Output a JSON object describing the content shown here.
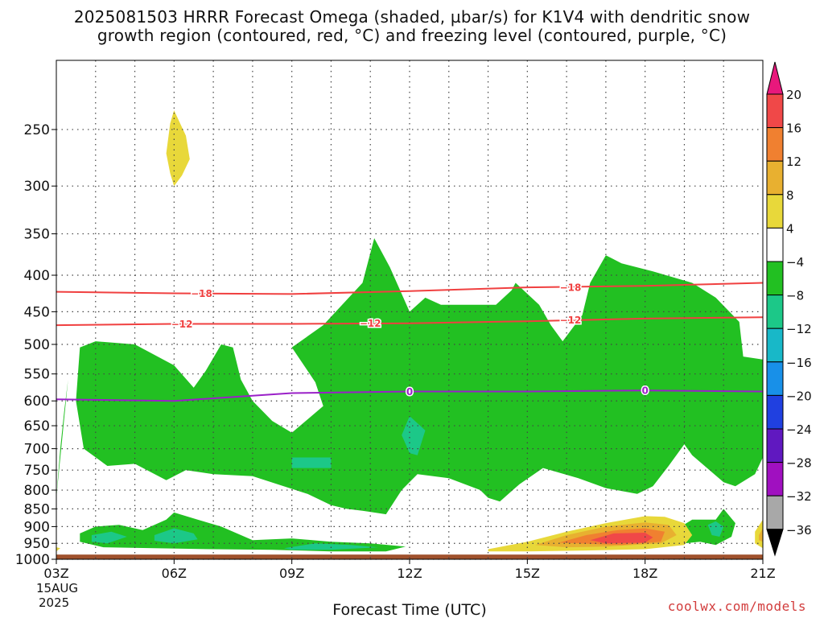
{
  "chart_data": {
    "type": "heatmap",
    "title_line1": "2025081503 HRRR Forecast Omega (shaded, µbar/s) for K1V4 with dendritic snow",
    "title_line2": "growth region (contoured, red, °C) and freezing level (contoured, purple, °C)",
    "xlabel": "Forecast Time (UTC)",
    "x_ticks": [
      "03Z",
      "06Z",
      "09Z",
      "12Z",
      "15Z",
      "18Z",
      "21Z"
    ],
    "x_hours": [
      3,
      21
    ],
    "date_label_line1": "15AUG",
    "date_label_line2": "2025",
    "y_ticks": [
      250,
      300,
      350,
      400,
      450,
      500,
      550,
      600,
      650,
      700,
      750,
      800,
      850,
      900,
      950,
      1000
    ],
    "y_range_hpa": [
      200,
      1000
    ],
    "y_scale": "log-pressure",
    "grid": true,
    "colorbar": {
      "labels": [
        "20",
        "16",
        "12",
        "8",
        "4",
        "−4",
        "−8",
        "−12",
        "−16",
        "−20",
        "−24",
        "−28",
        "−32",
        "−36"
      ],
      "colors": [
        "#e8187c",
        "#f04848",
        "#f08030",
        "#e8b030",
        "#e8d83a",
        "#ffffff",
        "#22c022",
        "#1cc888",
        "#18b8c8",
        "#1890e8",
        "#2040e0",
        "#6018c0",
        "#a010c0",
        "#a8a8a8",
        "#000000"
      ]
    },
    "contours": [
      {
        "label": "−18",
        "color": "#f04040",
        "points": [
          [
            3,
            422
          ],
          [
            6,
            424
          ],
          [
            9,
            425
          ],
          [
            12,
            421
          ],
          [
            15,
            416
          ],
          [
            18,
            414
          ],
          [
            21,
            410
          ]
        ],
        "label_at": [
          [
            6.7,
            424
          ],
          [
            16.1,
            416
          ]
        ]
      },
      {
        "label": "−12",
        "color": "#f04040",
        "points": [
          [
            3,
            470
          ],
          [
            6,
            468
          ],
          [
            9,
            468
          ],
          [
            12,
            467
          ],
          [
            15,
            464
          ],
          [
            18,
            460
          ],
          [
            21,
            458
          ]
        ],
        "label_at": [
          [
            6.2,
            468
          ],
          [
            11.0,
            467
          ],
          [
            16.1,
            462
          ]
        ]
      },
      {
        "label": "0",
        "color": "#9a20c8",
        "points": [
          [
            3,
            597
          ],
          [
            6,
            600
          ],
          [
            9,
            585
          ],
          [
            12,
            582
          ],
          [
            15,
            582
          ],
          [
            18,
            580
          ],
          [
            21,
            582
          ]
        ],
        "label_at": [
          [
            12.0,
            582
          ],
          [
            18.0,
            580
          ]
        ]
      }
    ],
    "surface_color": "#a0522d",
    "surface_top_hpa": 985,
    "omega_regions": [
      {
        "value_range": "-4 to -8",
        "color": "#22c022",
        "points": [
          [
            3.6,
            505
          ],
          [
            4.0,
            495
          ],
          [
            5.0,
            500
          ],
          [
            6.0,
            535
          ],
          [
            6.5,
            575
          ],
          [
            6.8,
            545
          ],
          [
            7.2,
            500
          ],
          [
            7.5,
            505
          ],
          [
            7.7,
            560
          ],
          [
            8.0,
            600
          ],
          [
            8.5,
            640
          ],
          [
            9.0,
            665
          ],
          [
            9.8,
            610
          ],
          [
            9.6,
            565
          ],
          [
            9.0,
            505
          ],
          [
            9.8,
            470
          ],
          [
            10.8,
            410
          ],
          [
            11.1,
            355
          ],
          [
            11.5,
            390
          ],
          [
            12.0,
            450
          ],
          [
            12.4,
            430
          ],
          [
            12.8,
            440
          ],
          [
            13.8,
            440
          ],
          [
            14.2,
            440
          ],
          [
            14.6,
            420
          ],
          [
            14.7,
            410
          ],
          [
            15.3,
            440
          ],
          [
            15.6,
            470
          ],
          [
            15.9,
            495
          ],
          [
            16.4,
            455
          ],
          [
            16.6,
            410
          ],
          [
            17.0,
            375
          ],
          [
            17.4,
            385
          ],
          [
            18.2,
            395
          ],
          [
            19.2,
            410
          ],
          [
            19.8,
            430
          ],
          [
            20.4,
            465
          ],
          [
            20.5,
            520
          ],
          [
            21.0,
            525
          ],
          [
            21.0,
            720
          ],
          [
            20.8,
            760
          ],
          [
            20.3,
            790
          ],
          [
            20.0,
            780
          ],
          [
            19.2,
            715
          ],
          [
            19.0,
            690
          ],
          [
            18.6,
            740
          ],
          [
            18.2,
            790
          ],
          [
            17.8,
            810
          ],
          [
            17.0,
            795
          ],
          [
            16.3,
            770
          ],
          [
            15.4,
            745
          ],
          [
            14.8,
            785
          ],
          [
            14.3,
            830
          ],
          [
            14.0,
            820
          ],
          [
            13.8,
            800
          ],
          [
            13.0,
            770
          ],
          [
            12.2,
            760
          ],
          [
            11.8,
            800
          ],
          [
            11.4,
            865
          ],
          [
            10.8,
            855
          ],
          [
            10.4,
            850
          ],
          [
            10.0,
            840
          ],
          [
            9.4,
            810
          ],
          [
            8.0,
            765
          ],
          [
            7.0,
            760
          ],
          [
            6.3,
            750
          ],
          [
            5.8,
            775
          ],
          [
            5.0,
            735
          ],
          [
            4.3,
            740
          ],
          [
            3.7,
            700
          ],
          [
            3.5,
            600
          ]
        ]
      },
      {
        "value_range": "-8 to -12",
        "color": "#1cc888",
        "points": [
          [
            9.0,
            720
          ],
          [
            10.0,
            720
          ],
          [
            10.0,
            745
          ],
          [
            9.0,
            745
          ]
        ]
      },
      {
        "value_range": "-8 to -12",
        "color": "#1cc888",
        "points": [
          [
            11.8,
            670
          ],
          [
            12.0,
            630
          ],
          [
            12.4,
            660
          ],
          [
            12.2,
            715
          ],
          [
            12.0,
            710
          ]
        ]
      },
      {
        "value_range": "-4 to -8",
        "color": "#22c022",
        "points": [
          [
            3.6,
            920
          ],
          [
            4.0,
            900
          ],
          [
            4.6,
            895
          ],
          [
            5.2,
            910
          ],
          [
            5.8,
            880
          ],
          [
            6.0,
            860
          ],
          [
            6.6,
            880
          ],
          [
            7.2,
            900
          ],
          [
            8.0,
            940
          ],
          [
            9.0,
            935
          ],
          [
            10.0,
            945
          ],
          [
            11.0,
            950
          ],
          [
            11.9,
            960
          ],
          [
            11.4,
            975
          ],
          [
            10.0,
            975
          ],
          [
            8.5,
            970
          ],
          [
            7.0,
            968
          ],
          [
            5.5,
            965
          ],
          [
            4.2,
            962
          ],
          [
            3.6,
            945
          ]
        ]
      },
      {
        "value_range": "-8 to -12",
        "color": "#1cc888",
        "points": [
          [
            3.9,
            925
          ],
          [
            4.4,
            915
          ],
          [
            4.8,
            930
          ],
          [
            4.3,
            950
          ],
          [
            3.9,
            945
          ]
        ]
      },
      {
        "value_range": "-8 to -12",
        "color": "#1cc888",
        "points": [
          [
            5.5,
            925
          ],
          [
            6.0,
            905
          ],
          [
            6.5,
            920
          ],
          [
            6.6,
            938
          ],
          [
            6.0,
            950
          ],
          [
            5.5,
            942
          ]
        ]
      },
      {
        "value_range": "-8 to -12",
        "color": "#1cc888",
        "points": [
          [
            8.8,
            965
          ],
          [
            9.6,
            950
          ],
          [
            10.5,
            955
          ],
          [
            11.2,
            962
          ],
          [
            10.0,
            970
          ],
          [
            9.0,
            970
          ]
        ]
      },
      {
        "value_range": "-4 to -8",
        "color": "#22c022",
        "points": [
          [
            18.7,
            915
          ],
          [
            19.2,
            880
          ],
          [
            19.8,
            880
          ],
          [
            20.0,
            850
          ],
          [
            20.3,
            890
          ],
          [
            20.2,
            930
          ],
          [
            19.8,
            955
          ],
          [
            19.4,
            945
          ],
          [
            19.0,
            950
          ],
          [
            18.7,
            935
          ]
        ]
      },
      {
        "value_range": "-8 to -12",
        "color": "#1cc888",
        "points": [
          [
            19.6,
            895
          ],
          [
            19.8,
            885
          ],
          [
            20.0,
            900
          ],
          [
            19.9,
            930
          ],
          [
            19.7,
            925
          ]
        ]
      },
      {
        "value_range": "-4 to -8",
        "color": "#22c022",
        "points": [
          [
            3.0,
            820
          ],
          [
            3.1,
            700
          ],
          [
            3.2,
            620
          ],
          [
            3.3,
            560
          ]
        ]
      },
      {
        "value_range": "4 to 8",
        "color": "#e8d83a",
        "points": [
          [
            5.8,
            270
          ],
          [
            5.9,
            245
          ],
          [
            6.0,
            235
          ],
          [
            6.3,
            255
          ],
          [
            6.4,
            275
          ],
          [
            6.2,
            290
          ],
          [
            6.0,
            300
          ],
          [
            5.9,
            288
          ]
        ]
      },
      {
        "value_range": "4 to 8",
        "color": "#e8d83a",
        "points": [
          [
            14.0,
            968
          ],
          [
            15.0,
            945
          ],
          [
            16.0,
            915
          ],
          [
            17.0,
            890
          ],
          [
            18.0,
            870
          ],
          [
            18.5,
            872
          ],
          [
            19.0,
            890
          ],
          [
            19.2,
            925
          ],
          [
            19.0,
            955
          ],
          [
            18.0,
            968
          ],
          [
            16.5,
            972
          ],
          [
            15.0,
            975
          ],
          [
            14.0,
            975
          ]
        ]
      },
      {
        "value_range": "8 to 12",
        "color": "#e8b030",
        "points": [
          [
            15.2,
            955
          ],
          [
            16.0,
            925
          ],
          [
            17.0,
            900
          ],
          [
            18.0,
            888
          ],
          [
            18.6,
            895
          ],
          [
            18.8,
            925
          ],
          [
            18.4,
            950
          ],
          [
            17.0,
            960
          ],
          [
            16.0,
            962
          ]
        ]
      },
      {
        "value_range": "12 to 16",
        "color": "#f08030",
        "points": [
          [
            15.8,
            948
          ],
          [
            16.5,
            925
          ],
          [
            17.3,
            910
          ],
          [
            18.0,
            905
          ],
          [
            18.5,
            915
          ],
          [
            18.4,
            945
          ],
          [
            17.4,
            955
          ]
        ]
      },
      {
        "value_range": "16 to 20",
        "color": "#f04848",
        "points": [
          [
            16.6,
            940
          ],
          [
            17.2,
            920
          ],
          [
            18.0,
            918
          ],
          [
            18.2,
            932
          ],
          [
            18.0,
            948
          ],
          [
            17.0,
            950
          ]
        ]
      },
      {
        "value_range": "4 to 8",
        "color": "#e8d83a",
        "points": [
          [
            20.8,
            915
          ],
          [
            21.0,
            880
          ],
          [
            21.0,
            965
          ],
          [
            20.8,
            950
          ]
        ]
      },
      {
        "value_range": "8 to 12",
        "color": "#e8b030",
        "points": [
          [
            20.9,
            925
          ],
          [
            21.0,
            905
          ],
          [
            21.0,
            945
          ],
          [
            20.9,
            940
          ]
        ]
      },
      {
        "value_range": "4 to 8",
        "color": "#e8d83a",
        "points": [
          [
            3.0,
            962
          ],
          [
            3.1,
            965
          ],
          [
            3.0,
            975
          ]
        ]
      }
    ]
  },
  "credit": "coolwx.com/models"
}
